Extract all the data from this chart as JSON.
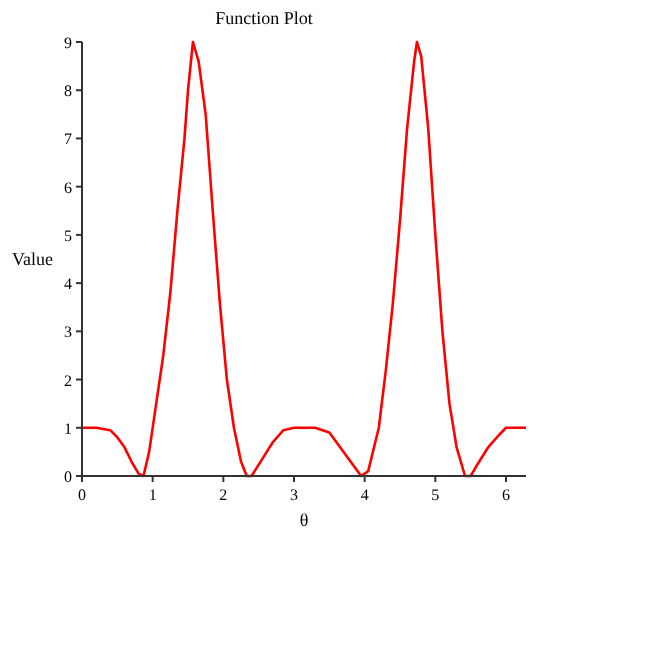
{
  "chart_data": {
    "type": "line",
    "title": "Function Plot",
    "xlabel": "θ",
    "ylabel": "Value",
    "xlim": [
      0,
      6.283
    ],
    "xticks": [
      0,
      1,
      2,
      3,
      4,
      5,
      6
    ],
    "ylim": [
      0,
      9
    ],
    "yticks": [
      0,
      1,
      2,
      3,
      4,
      5,
      6,
      7,
      8,
      9
    ],
    "grid": false,
    "marker": "none",
    "line_style": "solid",
    "series": [
      {
        "color": "#ff0000",
        "x": [
          0,
          0.2,
          0.4,
          0.5,
          0.6,
          0.7,
          0.8,
          0.87,
          0.95,
          1.05,
          1.15,
          1.25,
          1.35,
          1.45,
          1.5,
          1.57,
          1.65,
          1.75,
          1.85,
          1.95,
          2.05,
          2.15,
          2.25,
          2.33,
          2.4,
          2.55,
          2.7,
          2.85,
          3.0,
          3.3,
          3.5,
          3.65,
          3.8,
          3.95,
          4.05,
          4.2,
          4.3,
          4.4,
          4.5,
          4.6,
          4.7,
          4.74,
          4.8,
          4.9,
          5.0,
          5.1,
          5.2,
          5.3,
          5.42,
          5.5,
          5.6,
          5.75,
          5.9,
          6.0,
          6.283
        ],
        "values": [
          1,
          1,
          0.95,
          0.8,
          0.6,
          0.3,
          0.05,
          0,
          0.5,
          1.5,
          2.5,
          3.8,
          5.5,
          7,
          8,
          9,
          8.6,
          7.5,
          5.5,
          3.6,
          2,
          1,
          0.3,
          0,
          0,
          0.35,
          0.7,
          0.95,
          1,
          1,
          0.9,
          0.6,
          0.3,
          0,
          0.1,
          1,
          2.2,
          3.6,
          5.3,
          7.2,
          8.6,
          9,
          8.7,
          7.2,
          5,
          3,
          1.5,
          0.6,
          0,
          0,
          0.25,
          0.6,
          0.85,
          1,
          1
        ]
      }
    ]
  }
}
